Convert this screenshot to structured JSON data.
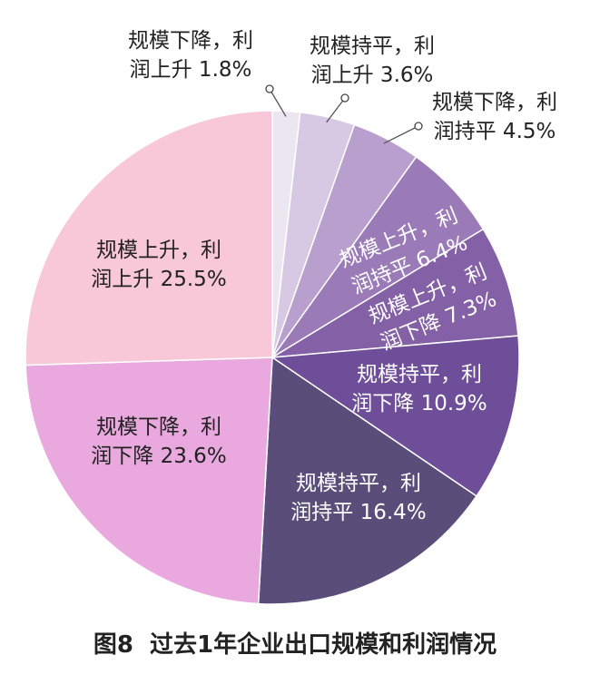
{
  "figure": {
    "number": "图8",
    "caption": "过去1年企业出口规模和利润情况"
  },
  "chart_data": {
    "type": "pie",
    "title": "过去1年企业出口规模和利润情况",
    "slices": [
      {
        "label_line1": "规模下降，利",
        "label_line2": "润上升",
        "value": 1.8,
        "value_label": "1.8%",
        "color": "#ece6f1"
      },
      {
        "label_line1": "规模持平，利",
        "label_line2": "润上升",
        "value": 3.6,
        "value_label": "3.6%",
        "color": "#d7c9e3"
      },
      {
        "label_line1": "规模下降，利",
        "label_line2": "润持平",
        "value": 4.5,
        "value_label": "4.5%",
        "color": "#b89fcd"
      },
      {
        "label_line1": "规模上升，利",
        "label_line2": "润持平",
        "value": 6.4,
        "value_label": "6.4%",
        "color": "#9a7bb8"
      },
      {
        "label_line1": "规模上升，利",
        "label_line2": "润下降",
        "value": 7.3,
        "value_label": "7.3%",
        "color": "#8460a6"
      },
      {
        "label_line1": "规模持平，利",
        "label_line2": "润下降",
        "value": 10.9,
        "value_label": "10.9%",
        "color": "#6f4e99"
      },
      {
        "label_line1": "规模持平，利",
        "label_line2": "润持平",
        "value": 16.4,
        "value_label": "16.4%",
        "color": "#5a4d7a"
      },
      {
        "label_line1": "规模下降，利",
        "label_line2": "润下降",
        "value": 23.6,
        "value_label": "23.6%",
        "color": "#e9a9de"
      },
      {
        "label_line1": "规模上升，利",
        "label_line2": "润上升",
        "value": 25.5,
        "value_label": "25.5%",
        "color": "#f8c7d8"
      }
    ]
  }
}
